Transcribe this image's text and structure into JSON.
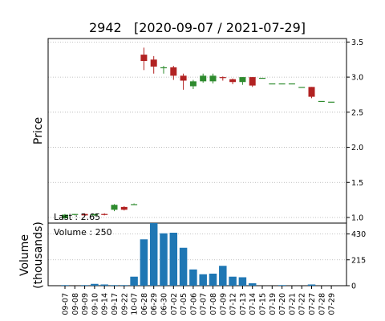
{
  "chart_data": {
    "type": "candlestick",
    "title": "2942   [2020-09-07 / 2021-07-29]",
    "price_panel": {
      "ylabel": "Price",
      "ylim": [
        0.92,
        3.55
      ],
      "yticks": [
        1.0,
        1.5,
        2.0,
        2.5,
        3.0,
        3.5
      ],
      "ytick_labels": [
        "1.0",
        "1.5",
        "2.0",
        "2.5",
        "3.0",
        "3.5"
      ],
      "annotation": "Last : 2.65",
      "grid": true
    },
    "volume_panel": {
      "ylabel_line1": "Volume",
      "ylabel_line2": "(thousands)",
      "ylim": [
        0,
        520
      ],
      "yticks": [
        0,
        215,
        430
      ],
      "ytick_labels": [
        "0",
        "215",
        "430"
      ],
      "annotation": "Volume : 250",
      "grid": true
    },
    "colors": {
      "up": "#2e8b2e",
      "down": "#b22222",
      "volume": "#1f77b4",
      "grid": "#b0b0b0"
    },
    "categories": [
      "09-07",
      "09-08",
      "09-09",
      "09-10",
      "09-14",
      "09-17",
      "09-22",
      "10-07",
      "06-28",
      "06-29",
      "06-30",
      "07-02",
      "07-05",
      "07-06",
      "07-07",
      "07-08",
      "07-09",
      "07-12",
      "07-13",
      "07-14",
      "07-15",
      "07-19",
      "07-20",
      "07-21",
      "07-22",
      "07-27",
      "07-28",
      "07-29"
    ],
    "open": [
      0.99,
      1.04,
      1.05,
      1.03,
      1.05,
      1.11,
      1.15,
      1.19,
      3.32,
      3.25,
      3.14,
      3.14,
      3.02,
      2.87,
      2.94,
      2.94,
      3.0,
      2.97,
      2.93,
      3.0,
      2.99,
      2.91,
      2.91,
      2.91,
      2.86,
      2.86,
      2.66,
      2.65
    ],
    "high": [
      1.05,
      1.05,
      1.06,
      1.05,
      1.06,
      1.19,
      1.16,
      1.2,
      3.42,
      3.3,
      3.16,
      3.16,
      3.05,
      2.96,
      3.05,
      3.05,
      3.01,
      2.98,
      3.0,
      3.0,
      2.99,
      2.91,
      2.91,
      2.91,
      2.86,
      2.86,
      2.66,
      2.65
    ],
    "low": [
      0.98,
      1.03,
      1.03,
      1.02,
      1.03,
      1.09,
      1.1,
      1.19,
      3.1,
      3.05,
      3.05,
      2.96,
      2.82,
      2.83,
      2.92,
      2.91,
      2.95,
      2.9,
      2.89,
      2.86,
      2.99,
      2.91,
      2.91,
      2.91,
      2.86,
      2.7,
      2.66,
      2.65
    ],
    "close": [
      1.04,
      1.05,
      1.03,
      1.05,
      1.04,
      1.18,
      1.11,
      1.19,
      3.23,
      3.15,
      3.14,
      3.02,
      2.95,
      2.94,
      3.02,
      3.02,
      2.99,
      2.93,
      3.0,
      2.88,
      2.99,
      2.91,
      2.91,
      2.91,
      2.86,
      2.72,
      2.66,
      2.65
    ],
    "volume": [
      5,
      0,
      5,
      15,
      10,
      5,
      5,
      75,
      385,
      520,
      435,
      440,
      315,
      135,
      95,
      100,
      165,
      75,
      70,
      20,
      0,
      0,
      5,
      0,
      0,
      10,
      0,
      0
    ]
  }
}
